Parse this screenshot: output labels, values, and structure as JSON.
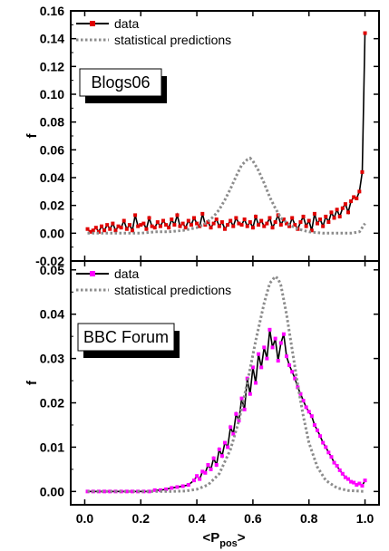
{
  "chart_data": [
    {
      "type": "line",
      "panel": "top",
      "badge": "Blogs06",
      "ylabel": "f",
      "xlim": [
        -0.05,
        1.05
      ],
      "ylim": [
        -0.02,
        0.16
      ],
      "yticks": [
        "-0.02",
        "0.00",
        "0.02",
        "0.04",
        "0.06",
        "0.08",
        "0.10",
        "0.12",
        "0.14",
        "0.16"
      ],
      "ytick_values": [
        -0.02,
        0.0,
        0.02,
        0.04,
        0.06,
        0.08,
        0.1,
        0.12,
        0.14,
        0.16
      ],
      "legend": {
        "position": "top-left",
        "entries": [
          "data",
          "statistical predictions"
        ]
      },
      "series": [
        {
          "name": "data",
          "color": "#e00000",
          "marker": "square",
          "x": [
            0.01,
            0.02,
            0.03,
            0.04,
            0.05,
            0.06,
            0.07,
            0.08,
            0.09,
            0.1,
            0.11,
            0.12,
            0.13,
            0.14,
            0.15,
            0.16,
            0.17,
            0.18,
            0.19,
            0.2,
            0.21,
            0.22,
            0.23,
            0.24,
            0.25,
            0.26,
            0.27,
            0.28,
            0.29,
            0.3,
            0.31,
            0.32,
            0.33,
            0.34,
            0.35,
            0.36,
            0.37,
            0.38,
            0.39,
            0.4,
            0.41,
            0.42,
            0.43,
            0.44,
            0.45,
            0.46,
            0.47,
            0.48,
            0.49,
            0.5,
            0.51,
            0.52,
            0.53,
            0.54,
            0.55,
            0.56,
            0.57,
            0.58,
            0.59,
            0.6,
            0.61,
            0.62,
            0.63,
            0.64,
            0.65,
            0.66,
            0.67,
            0.68,
            0.69,
            0.7,
            0.71,
            0.72,
            0.73,
            0.74,
            0.75,
            0.76,
            0.77,
            0.78,
            0.79,
            0.8,
            0.81,
            0.82,
            0.83,
            0.84,
            0.85,
            0.86,
            0.87,
            0.88,
            0.89,
            0.9,
            0.91,
            0.92,
            0.93,
            0.94,
            0.95,
            0.96,
            0.97,
            0.98,
            0.99,
            1.0
          ],
          "values": [
            0.003,
            0.001,
            0.002,
            0.004,
            0.001,
            0.005,
            0.002,
            0.006,
            0.003,
            0.007,
            0.002,
            0.005,
            0.004,
            0.009,
            0.003,
            0.006,
            0.002,
            0.013,
            0.005,
            0.006,
            0.007,
            0.003,
            0.011,
            0.005,
            0.004,
            0.008,
            0.005,
            0.009,
            0.006,
            0.004,
            0.01,
            0.006,
            0.013,
            0.005,
            0.007,
            0.004,
            0.009,
            0.006,
            0.011,
            0.007,
            0.005,
            0.014,
            0.006,
            0.008,
            0.004,
            0.007,
            0.01,
            0.005,
            0.008,
            0.003,
            0.006,
            0.009,
            0.005,
            0.011,
            0.007,
            0.006,
            0.01,
            0.005,
            0.008,
            0.004,
            0.012,
            0.006,
            0.009,
            0.005,
            0.007,
            0.011,
            0.004,
            0.008,
            0.013,
            0.006,
            0.01,
            0.007,
            0.005,
            0.011,
            0.006,
            0.003,
            0.008,
            0.012,
            0.005,
            0.009,
            0.002,
            0.014,
            0.007,
            0.01,
            0.005,
            0.012,
            0.008,
            0.015,
            0.011,
            0.017,
            0.012,
            0.018,
            0.021,
            0.015,
            0.023,
            0.026,
            0.025,
            0.03,
            0.044,
            0.144
          ]
        },
        {
          "name": "statistical predictions",
          "color": "#8c8c8c",
          "dashed": true,
          "x": [
            0.01,
            0.05,
            0.1,
            0.15,
            0.2,
            0.25,
            0.3,
            0.35,
            0.4,
            0.43,
            0.46,
            0.48,
            0.5,
            0.52,
            0.54,
            0.56,
            0.58,
            0.59,
            0.6,
            0.62,
            0.64,
            0.66,
            0.68,
            0.7,
            0.73,
            0.76,
            0.8,
            0.85,
            0.9,
            0.95,
            0.98,
            1.0
          ],
          "values": [
            0.0,
            0.0,
            0.0,
            0.0,
            0.0,
            0.001,
            0.001,
            0.002,
            0.004,
            0.007,
            0.012,
            0.017,
            0.024,
            0.032,
            0.041,
            0.049,
            0.053,
            0.054,
            0.052,
            0.045,
            0.036,
            0.026,
            0.018,
            0.011,
            0.006,
            0.003,
            0.001,
            0.0,
            0.0,
            0.0,
            0.001,
            0.007
          ]
        }
      ]
    },
    {
      "type": "line",
      "panel": "bottom",
      "badge": "BBC Forum",
      "ylabel": "f",
      "xlabel": "<P",
      "xlabel_sub": "pos",
      "xlabel_end": ">",
      "xlim": [
        -0.05,
        1.05
      ],
      "ylim": [
        -0.003,
        0.052
      ],
      "yticks": [
        "0.00",
        "0.01",
        "0.02",
        "0.03",
        "0.04",
        "0.05"
      ],
      "ytick_values": [
        0.0,
        0.01,
        0.02,
        0.03,
        0.04,
        0.05
      ],
      "xticks": [
        "0.0",
        "0.2",
        "0.4",
        "0.6",
        "0.8",
        "1.0"
      ],
      "xtick_values": [
        0.0,
        0.2,
        0.4,
        0.6,
        0.8,
        1.0
      ],
      "legend": {
        "position": "top-left",
        "entries": [
          "data",
          "statistical predictions"
        ]
      },
      "series": [
        {
          "name": "data",
          "color": "#ff00ff",
          "marker": "square",
          "x": [
            0.01,
            0.03,
            0.05,
            0.07,
            0.09,
            0.11,
            0.13,
            0.15,
            0.17,
            0.19,
            0.21,
            0.23,
            0.25,
            0.27,
            0.29,
            0.31,
            0.33,
            0.35,
            0.37,
            0.39,
            0.4,
            0.41,
            0.42,
            0.43,
            0.44,
            0.45,
            0.46,
            0.47,
            0.48,
            0.49,
            0.5,
            0.51,
            0.52,
            0.53,
            0.54,
            0.55,
            0.56,
            0.57,
            0.58,
            0.59,
            0.6,
            0.61,
            0.62,
            0.63,
            0.64,
            0.65,
            0.66,
            0.67,
            0.68,
            0.69,
            0.7,
            0.71,
            0.72,
            0.73,
            0.74,
            0.75,
            0.76,
            0.77,
            0.78,
            0.79,
            0.8,
            0.81,
            0.82,
            0.83,
            0.84,
            0.85,
            0.86,
            0.87,
            0.88,
            0.89,
            0.9,
            0.91,
            0.92,
            0.93,
            0.94,
            0.95,
            0.96,
            0.97,
            0.98,
            0.99,
            1.0
          ],
          "values": [
            0.0,
            0.0,
            0.0,
            0.0,
            0.0,
            0.0,
            0.0,
            0.0,
            0.0,
            0.0,
            0.0,
            0.0,
            0.0003,
            0.0003,
            0.0005,
            0.0008,
            0.001,
            0.0012,
            0.0015,
            0.0025,
            0.0035,
            0.0028,
            0.0045,
            0.0042,
            0.006,
            0.005,
            0.0075,
            0.006,
            0.0095,
            0.008,
            0.011,
            0.01,
            0.0145,
            0.013,
            0.0175,
            0.016,
            0.021,
            0.0185,
            0.0255,
            0.022,
            0.028,
            0.0245,
            0.031,
            0.028,
            0.0325,
            0.03,
            0.0365,
            0.0325,
            0.0345,
            0.0295,
            0.0335,
            0.0355,
            0.0305,
            0.0285,
            0.027,
            0.0255,
            0.0235,
            0.022,
            0.0205,
            0.019,
            0.018,
            0.017,
            0.015,
            0.0138,
            0.0125,
            0.011,
            0.01,
            0.0088,
            0.0078,
            0.0065,
            0.0058,
            0.0048,
            0.004,
            0.0032,
            0.0028,
            0.0022,
            0.002,
            0.0015,
            0.0018,
            0.0013,
            0.0025
          ]
        },
        {
          "name": "statistical predictions",
          "color": "#8c8c8c",
          "dashed": true,
          "x": [
            0.01,
            0.1,
            0.2,
            0.3,
            0.36,
            0.4,
            0.44,
            0.48,
            0.52,
            0.55,
            0.58,
            0.61,
            0.64,
            0.66,
            0.68,
            0.69,
            0.7,
            0.72,
            0.74,
            0.76,
            0.78,
            0.8,
            0.83,
            0.86,
            0.9,
            0.94,
            1.0
          ],
          "values": [
            0.0,
            0.0,
            0.0,
            0.0,
            0.0001,
            0.0005,
            0.0015,
            0.004,
            0.0095,
            0.016,
            0.0245,
            0.034,
            0.0425,
            0.047,
            0.0485,
            0.048,
            0.0465,
            0.04,
            0.032,
            0.024,
            0.017,
            0.011,
            0.0055,
            0.0025,
            0.0008,
            0.0002,
            0.0
          ]
        }
      ]
    }
  ]
}
